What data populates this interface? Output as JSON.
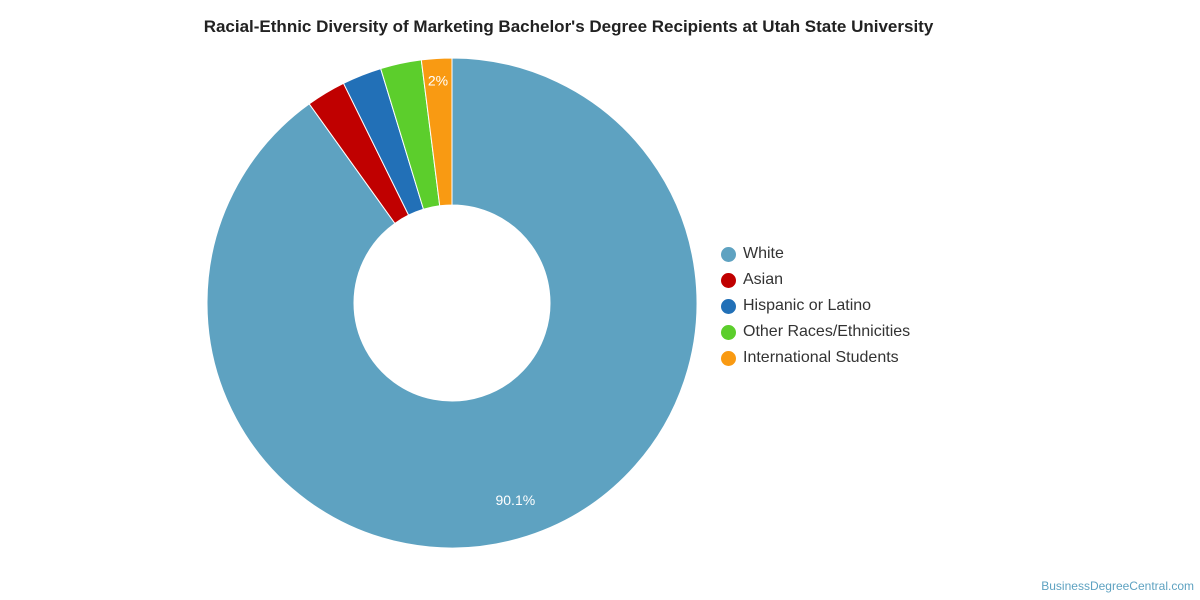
{
  "chart_data": {
    "type": "pie",
    "title": "Racial-Ethnic Diversity of Marketing Bachelor's Degree Recipients at Utah State University",
    "donut": true,
    "legend_position": "right",
    "categories": [
      "White",
      "Asian",
      "Hispanic or Latino",
      "Other Races/Ethnicities",
      "International Students"
    ],
    "values": [
      90.1,
      2.6,
      2.6,
      2.7,
      2.0
    ],
    "data_labels": [
      "90.1%",
      "",
      "",
      "",
      "2%"
    ],
    "colors": [
      "#5ea2c1",
      "#c00000",
      "#2270b7",
      "#5cce2c",
      "#f99a12"
    ]
  },
  "credit": "BusinessDegreeCentral.com"
}
